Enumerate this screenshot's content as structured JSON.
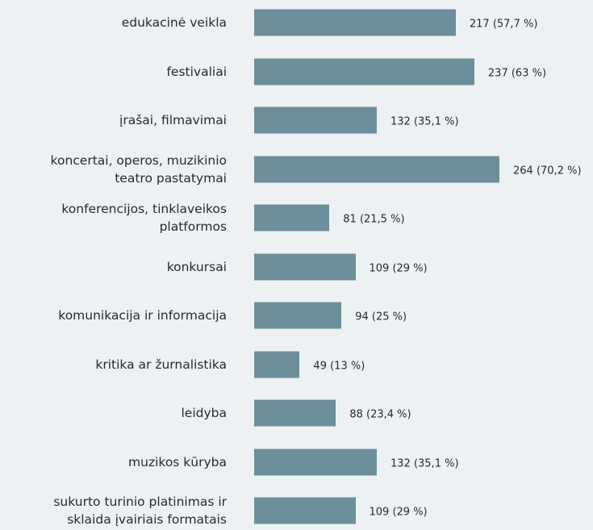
{
  "chart_data": {
    "type": "bar",
    "orientation": "horizontal",
    "categories": [
      "edukacinė veikla",
      "festivaliai",
      "įrašai, filmavimai",
      "koncertai, operos, muzikinio\nteatro pastatymai",
      "konferencijos, tinklaveikos\nplatformos",
      "konkursai",
      "komunikacija ir informacija",
      "kritika ar žurnalistika",
      "leidyba",
      "muzikos kūryba",
      "sukurto turinio platinimas ir\nsklaida įvairiais formatais"
    ],
    "values": [
      217,
      237,
      132,
      264,
      81,
      109,
      94,
      49,
      88,
      132,
      109
    ],
    "value_labels": [
      "217 (57,7 %)",
      "237 (63 %)",
      "132 (35,1 %)",
      "264 (70,2 %)",
      "81 (21,5 %)",
      "109 (29 %)",
      "94 (25 %)",
      "49 (13 %)",
      "88 (23,4 %)",
      "132 (35,1 %)",
      "109 (29 %)"
    ],
    "color": "#6d8f99"
  }
}
